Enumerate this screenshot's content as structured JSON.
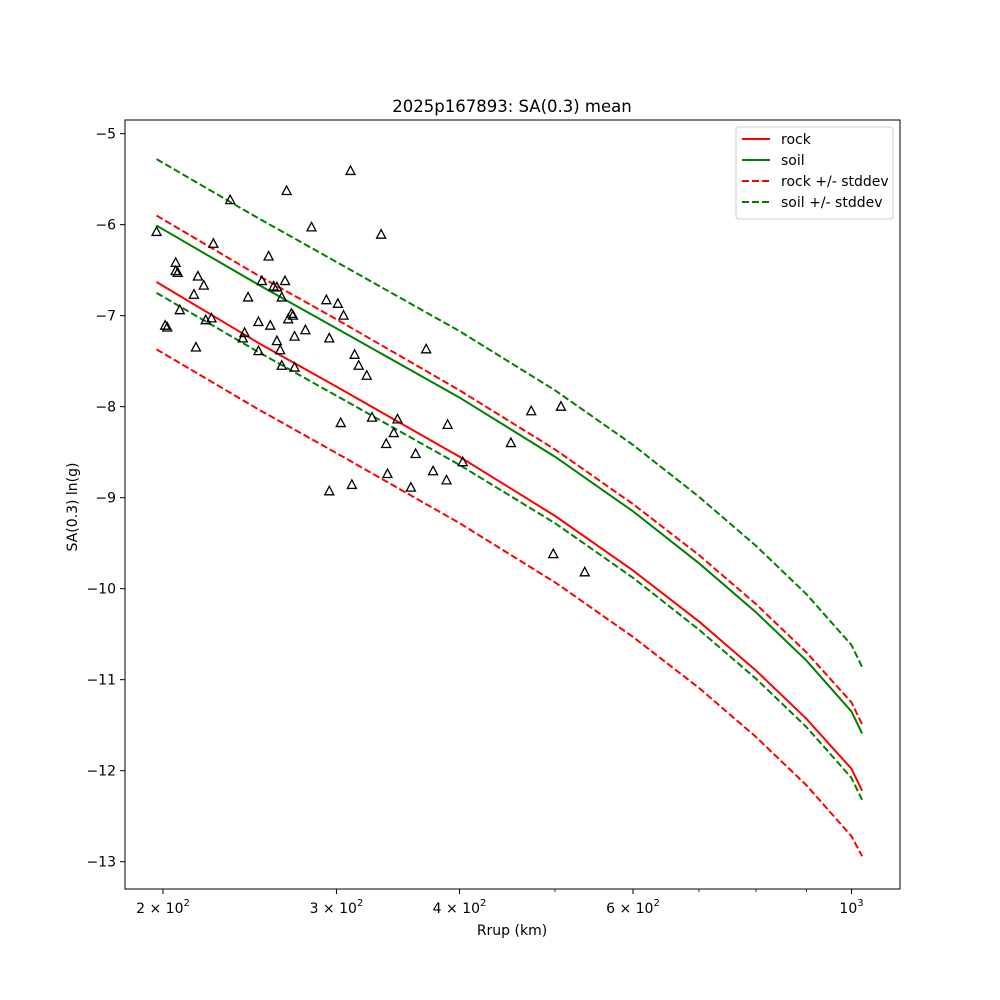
{
  "chart_data": {
    "type": "line",
    "title": "2025p167893: SA(0.3) mean",
    "xlabel": "Rrup (km)",
    "ylabel": "SA(0.3) ln(g)",
    "xscale": "log",
    "xlim": [
      183,
      1120
    ],
    "ylim": [
      -13.3,
      -4.85
    ],
    "grid": false,
    "legend_position": "top-right",
    "x_ticks": [
      {
        "value": 200,
        "label_base": "2 × 10",
        "label_exp": "2"
      },
      {
        "value": 300,
        "label_base": "3 × 10",
        "label_exp": "2"
      },
      {
        "value": 400,
        "label_base": "4 × 10",
        "label_exp": "2"
      },
      {
        "value": 600,
        "label_base": "6 × 10",
        "label_exp": "2"
      },
      {
        "value": 1000,
        "label_base": "10",
        "label_exp": "3"
      }
    ],
    "y_ticks": [
      {
        "value": -5,
        "label": "−5"
      },
      {
        "value": -6,
        "label": "−6"
      },
      {
        "value": -7,
        "label": "−7"
      },
      {
        "value": -8,
        "label": "−8"
      },
      {
        "value": -9,
        "label": "−9"
      },
      {
        "value": -10,
        "label": "−10"
      },
      {
        "value": -11,
        "label": "−11"
      },
      {
        "value": -12,
        "label": "−12"
      },
      {
        "value": -13,
        "label": "−13"
      }
    ],
    "series": [
      {
        "name": "rock",
        "color": "#ff0000",
        "dash": "solid",
        "x": [
          197,
          250,
          300,
          400,
          500,
          600,
          700,
          800,
          900,
          1000,
          1025
        ],
        "y": [
          -6.63,
          -7.3,
          -7.78,
          -8.55,
          -9.2,
          -9.8,
          -10.36,
          -10.9,
          -11.43,
          -11.98,
          -12.22
        ]
      },
      {
        "name": "soil",
        "color": "#008000",
        "dash": "solid",
        "x": [
          197,
          250,
          300,
          400,
          500,
          600,
          700,
          800,
          900,
          1000,
          1025
        ],
        "y": [
          -6.01,
          -6.66,
          -7.14,
          -7.9,
          -8.55,
          -9.15,
          -9.72,
          -10.26,
          -10.79,
          -11.35,
          -11.59
        ]
      },
      {
        "name": "rock +/- stddev",
        "color": "#ff0000",
        "dash": "dashed",
        "x": [
          197,
          250,
          300,
          400,
          500,
          600,
          700,
          800,
          900,
          1000,
          1025
        ],
        "y": [
          -5.9,
          -6.56,
          -7.04,
          -7.82,
          -8.47,
          -9.07,
          -9.63,
          -10.17,
          -10.7,
          -11.25,
          -11.49
        ]
      },
      {
        "name": "rock +/- stddev",
        "color": "#ff0000",
        "dash": "dashed",
        "legend": false,
        "x": [
          197,
          250,
          300,
          400,
          500,
          600,
          700,
          800,
          900,
          1000,
          1025
        ],
        "y": [
          -7.37,
          -8.03,
          -8.51,
          -9.28,
          -9.93,
          -10.53,
          -11.09,
          -11.63,
          -12.16,
          -12.72,
          -12.94
        ]
      },
      {
        "name": "soil +/- stddev",
        "color": "#008000",
        "dash": "dashed",
        "x": [
          197,
          250,
          300,
          400,
          500,
          600,
          700,
          800,
          900,
          1000,
          1025
        ],
        "y": [
          -5.28,
          -5.93,
          -6.41,
          -7.17,
          -7.82,
          -8.42,
          -8.99,
          -9.53,
          -10.06,
          -10.62,
          -10.86
        ]
      },
      {
        "name": "soil +/- stddev",
        "color": "#008000",
        "dash": "dashed",
        "legend": false,
        "x": [
          197,
          250,
          300,
          400,
          500,
          600,
          700,
          800,
          900,
          1000,
          1025
        ],
        "y": [
          -6.75,
          -7.4,
          -7.88,
          -8.64,
          -9.28,
          -9.88,
          -10.45,
          -10.99,
          -11.52,
          -12.08,
          -12.32
        ]
      }
    ],
    "observations": {
      "marker": "triangle-open",
      "color": "#000000",
      "points": [
        [
          197,
          -6.08
        ],
        [
          201,
          -7.11
        ],
        [
          202,
          -7.13
        ],
        [
          206,
          -6.42
        ],
        [
          206,
          -6.51
        ],
        [
          207,
          -6.53
        ],
        [
          208,
          -6.94
        ],
        [
          215,
          -6.77
        ],
        [
          216,
          -7.35
        ],
        [
          217,
          -6.57
        ],
        [
          220,
          -6.67
        ],
        [
          221,
          -7.05
        ],
        [
          224,
          -7.03
        ],
        [
          225,
          -6.21
        ],
        [
          234,
          -5.73
        ],
        [
          241,
          -7.25
        ],
        [
          242,
          -7.19
        ],
        [
          244,
          -6.8
        ],
        [
          250,
          -7.07
        ],
        [
          250,
          -7.39
        ],
        [
          252,
          -6.62
        ],
        [
          256,
          -6.35
        ],
        [
          257,
          -7.11
        ],
        [
          259,
          -6.68
        ],
        [
          261,
          -6.69
        ],
        [
          261,
          -7.28
        ],
        [
          263,
          -7.38
        ],
        [
          264,
          -6.8
        ],
        [
          264,
          -7.55
        ],
        [
          266,
          -6.62
        ],
        [
          267,
          -5.63
        ],
        [
          268,
          -7.04
        ],
        [
          270,
          -6.98
        ],
        [
          271,
          -7.0
        ],
        [
          272,
          -7.23
        ],
        [
          272,
          -7.57
        ],
        [
          279,
          -7.16
        ],
        [
          283,
          -6.03
        ],
        [
          293,
          -6.83
        ],
        [
          295,
          -7.25
        ],
        [
          295,
          -8.93
        ],
        [
          301,
          -6.87
        ],
        [
          303,
          -8.18
        ],
        [
          305,
          -7.0
        ],
        [
          310,
          -5.41
        ],
        [
          311,
          -8.86
        ],
        [
          313,
          -7.43
        ],
        [
          316,
          -7.55
        ],
        [
          322,
          -7.66
        ],
        [
          326,
          -8.12
        ],
        [
          333,
          -6.11
        ],
        [
          337,
          -8.41
        ],
        [
          338,
          -8.74
        ],
        [
          343,
          -8.29
        ],
        [
          346,
          -8.14
        ],
        [
          357,
          -8.89
        ],
        [
          361,
          -8.52
        ],
        [
          370,
          -7.37
        ],
        [
          376,
          -8.71
        ],
        [
          388,
          -8.81
        ],
        [
          389,
          -8.2
        ],
        [
          403,
          -8.61
        ],
        [
          451,
          -8.4
        ],
        [
          473,
          -8.05
        ],
        [
          498,
          -9.62
        ],
        [
          507,
          -8.0
        ],
        [
          536,
          -9.82
        ]
      ]
    }
  }
}
